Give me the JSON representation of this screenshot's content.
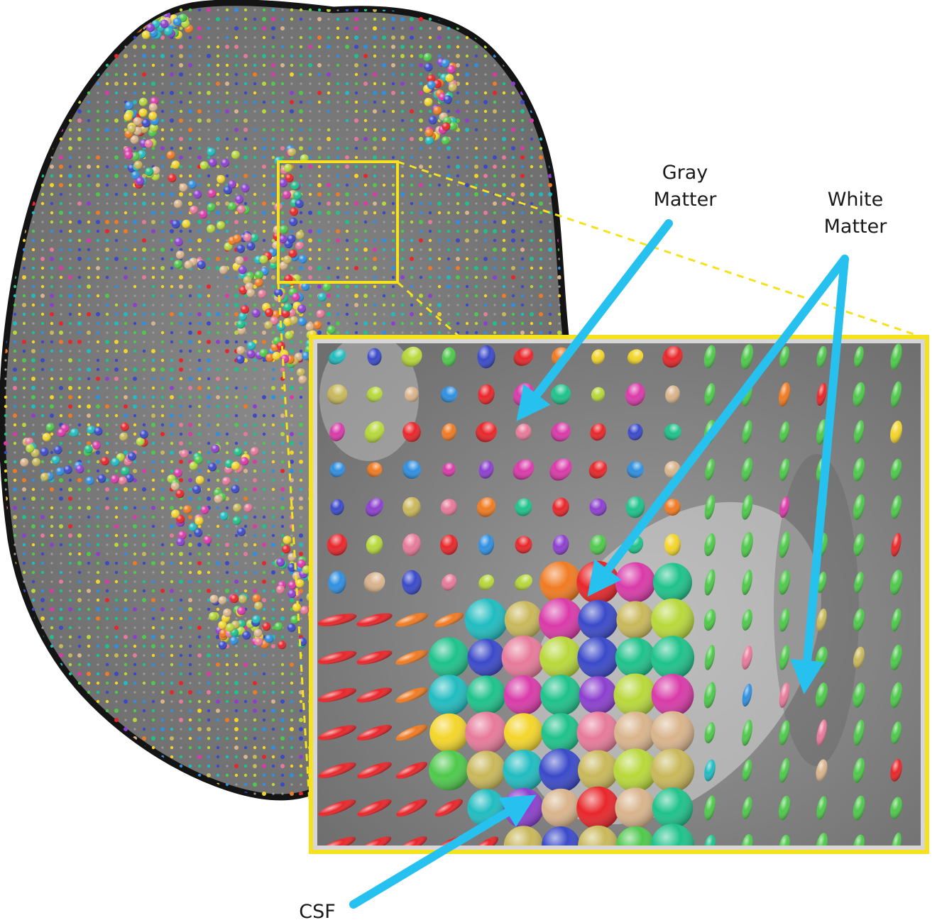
{
  "labels": {
    "gray_matter": [
      "Gray",
      "Matter"
    ],
    "white_matter": [
      "White",
      "Matter"
    ],
    "csf": "CSF"
  },
  "colors": {
    "arrow": "#27c1f0",
    "frame": "#f5e11c",
    "connector": "#f5e11c",
    "background": "#ffffff",
    "tissue_gray": "#7b7b7b",
    "brain_outline": "#141414",
    "glyph_palette": [
      "#e8262a",
      "#f07b22",
      "#f3d52a",
      "#b8d83a",
      "#4ec94b",
      "#1ec28a",
      "#20bcc0",
      "#2f8fe0",
      "#3a49c9",
      "#8c3fcf",
      "#d93aa8",
      "#e77a9a",
      "#d9b48c",
      "#c9b85a"
    ]
  },
  "icons": {
    "overview": "axial-brain-slice-glyph-map",
    "inset": "magnified-tensor-ellipsoid-field",
    "pointer": "arrow"
  }
}
